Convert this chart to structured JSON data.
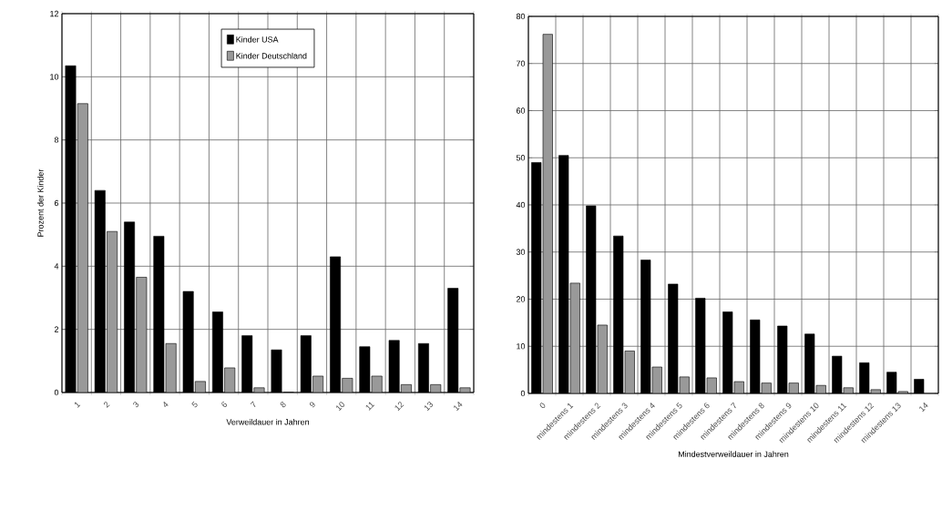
{
  "chart_data": [
    {
      "type": "bar",
      "xlabel": "Verweildauer in Jahren",
      "ylabel": "Prozent der Kinder",
      "categories": [
        "1",
        "2",
        "3",
        "4",
        "5",
        "6",
        "7",
        "8",
        "9",
        "10",
        "11",
        "12",
        "13",
        "14"
      ],
      "series": [
        {
          "name": "Kinder USA",
          "color": "#000000",
          "values": [
            10.35,
            6.4,
            5.4,
            4.95,
            3.2,
            2.55,
            1.8,
            1.35,
            1.8,
            4.3,
            1.45,
            1.65,
            1.55,
            3.3
          ]
        },
        {
          "name": "Kinder Deutschland",
          "color": "#999999",
          "values": [
            9.15,
            5.1,
            3.65,
            1.55,
            0.35,
            0.78,
            0.15,
            0,
            0.52,
            0.45,
            0.52,
            0.25,
            0.25,
            0.15
          ]
        }
      ],
      "ylim": [
        0,
        12
      ],
      "yticks": [
        0,
        2,
        4,
        6,
        8,
        10,
        12
      ],
      "grid": true,
      "legend": "top"
    },
    {
      "type": "bar",
      "xlabel": "Mindestverweildauer in Jahren",
      "categories": [
        "0",
        "mindestens 1",
        "mindestens 2",
        "mindestens 3",
        "mindestens 4",
        "mindestens 5",
        "mindestens 6",
        "mindestens 7",
        "mindestens 8",
        "mindestens 9",
        "mindestens 10",
        "mindestens 11",
        "mindestens 12",
        "mindestens 13",
        "14"
      ],
      "series": [
        {
          "color": "#000000",
          "values": [
            49,
            50.5,
            39.8,
            33.4,
            28.3,
            23.2,
            20.2,
            17.3,
            15.6,
            14.3,
            12.6,
            7.9,
            6.5,
            4.5,
            3
          ]
        },
        {
          "color": "#999999",
          "values": [
            76.2,
            23.4,
            14.5,
            9,
            5.6,
            3.5,
            3.3,
            2.5,
            2.2,
            2.2,
            1.7,
            1.2,
            0.8,
            0.4,
            null
          ]
        }
      ],
      "ylim": [
        0,
        80
      ],
      "yticks": [
        0,
        10,
        20,
        30,
        40,
        50,
        60,
        70,
        80
      ],
      "grid": true
    }
  ]
}
